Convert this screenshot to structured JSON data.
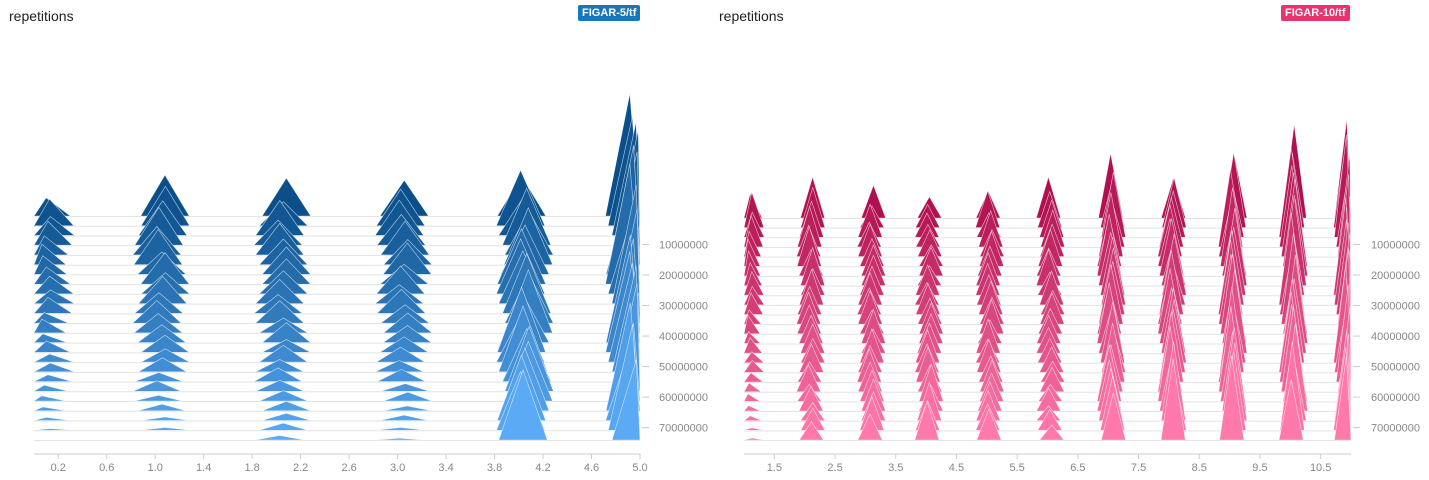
{
  "panels": [
    {
      "title": "repetitions",
      "run_label": "FIGAR-5/tf",
      "badge_color": "#1976b8",
      "color_top": "#0b4f8a",
      "color_bottom": "#5aaaf5"
    },
    {
      "title": "repetitions",
      "run_label": "FIGAR-10/tf",
      "badge_color": "#e8336d",
      "color_top": "#b0104f",
      "color_bottom": "#ff7aab"
    }
  ],
  "chart_data": [
    {
      "type": "histogram",
      "mode": "offset",
      "title": "repetitions",
      "run": "FIGAR-5/tf",
      "x_ticks": [
        "0.2",
        "0.6",
        "1.0",
        "1.4",
        "1.8",
        "2.2",
        "2.6",
        "3.0",
        "3.4",
        "3.8",
        "4.2",
        "4.6",
        "5.0"
      ],
      "xlim": [
        0,
        5.0
      ],
      "step_ticks": [
        "10000000",
        "20000000",
        "30000000",
        "40000000",
        "50000000",
        "60000000",
        "70000000"
      ],
      "steplim": [
        0,
        78000000
      ],
      "bin_centers": [
        0.1,
        1.05,
        2.05,
        3.05,
        4.05,
        4.95
      ],
      "first_step_counts": [
        0.28,
        0.45,
        0.38,
        0.42,
        0.55,
        1.28
      ],
      "last_step_counts": [
        0.01,
        0.01,
        0.06,
        0.02,
        0.72,
        1.05
      ]
    },
    {
      "type": "histogram",
      "mode": "offset",
      "title": "repetitions",
      "run": "FIGAR-10/tf",
      "x_ticks": [
        "1.5",
        "2.5",
        "3.5",
        "4.5",
        "5.5",
        "6.5",
        "7.5",
        "8.5",
        "9.5",
        "10.5"
      ],
      "xlim": [
        1.0,
        11.0
      ],
      "step_ticks": [
        "10000000",
        "20000000",
        "30000000",
        "40000000",
        "50000000",
        "60000000",
        "70000000"
      ],
      "steplim": [
        0,
        78000000
      ],
      "bin_centers": [
        1.1,
        2.1,
        3.1,
        4.05,
        5.05,
        6.05,
        7.05,
        8.05,
        9.05,
        10.05,
        10.95
      ],
      "first_step_counts": [
        0.37,
        0.45,
        0.33,
        0.25,
        0.37,
        0.43,
        0.66,
        0.51,
        0.76,
        0.95,
        1.05
      ],
      "last_step_counts": [
        0.02,
        0.22,
        0.35,
        0.4,
        0.32,
        0.2,
        0.58,
        0.82,
        0.9,
        0.88,
        0.95
      ]
    }
  ]
}
